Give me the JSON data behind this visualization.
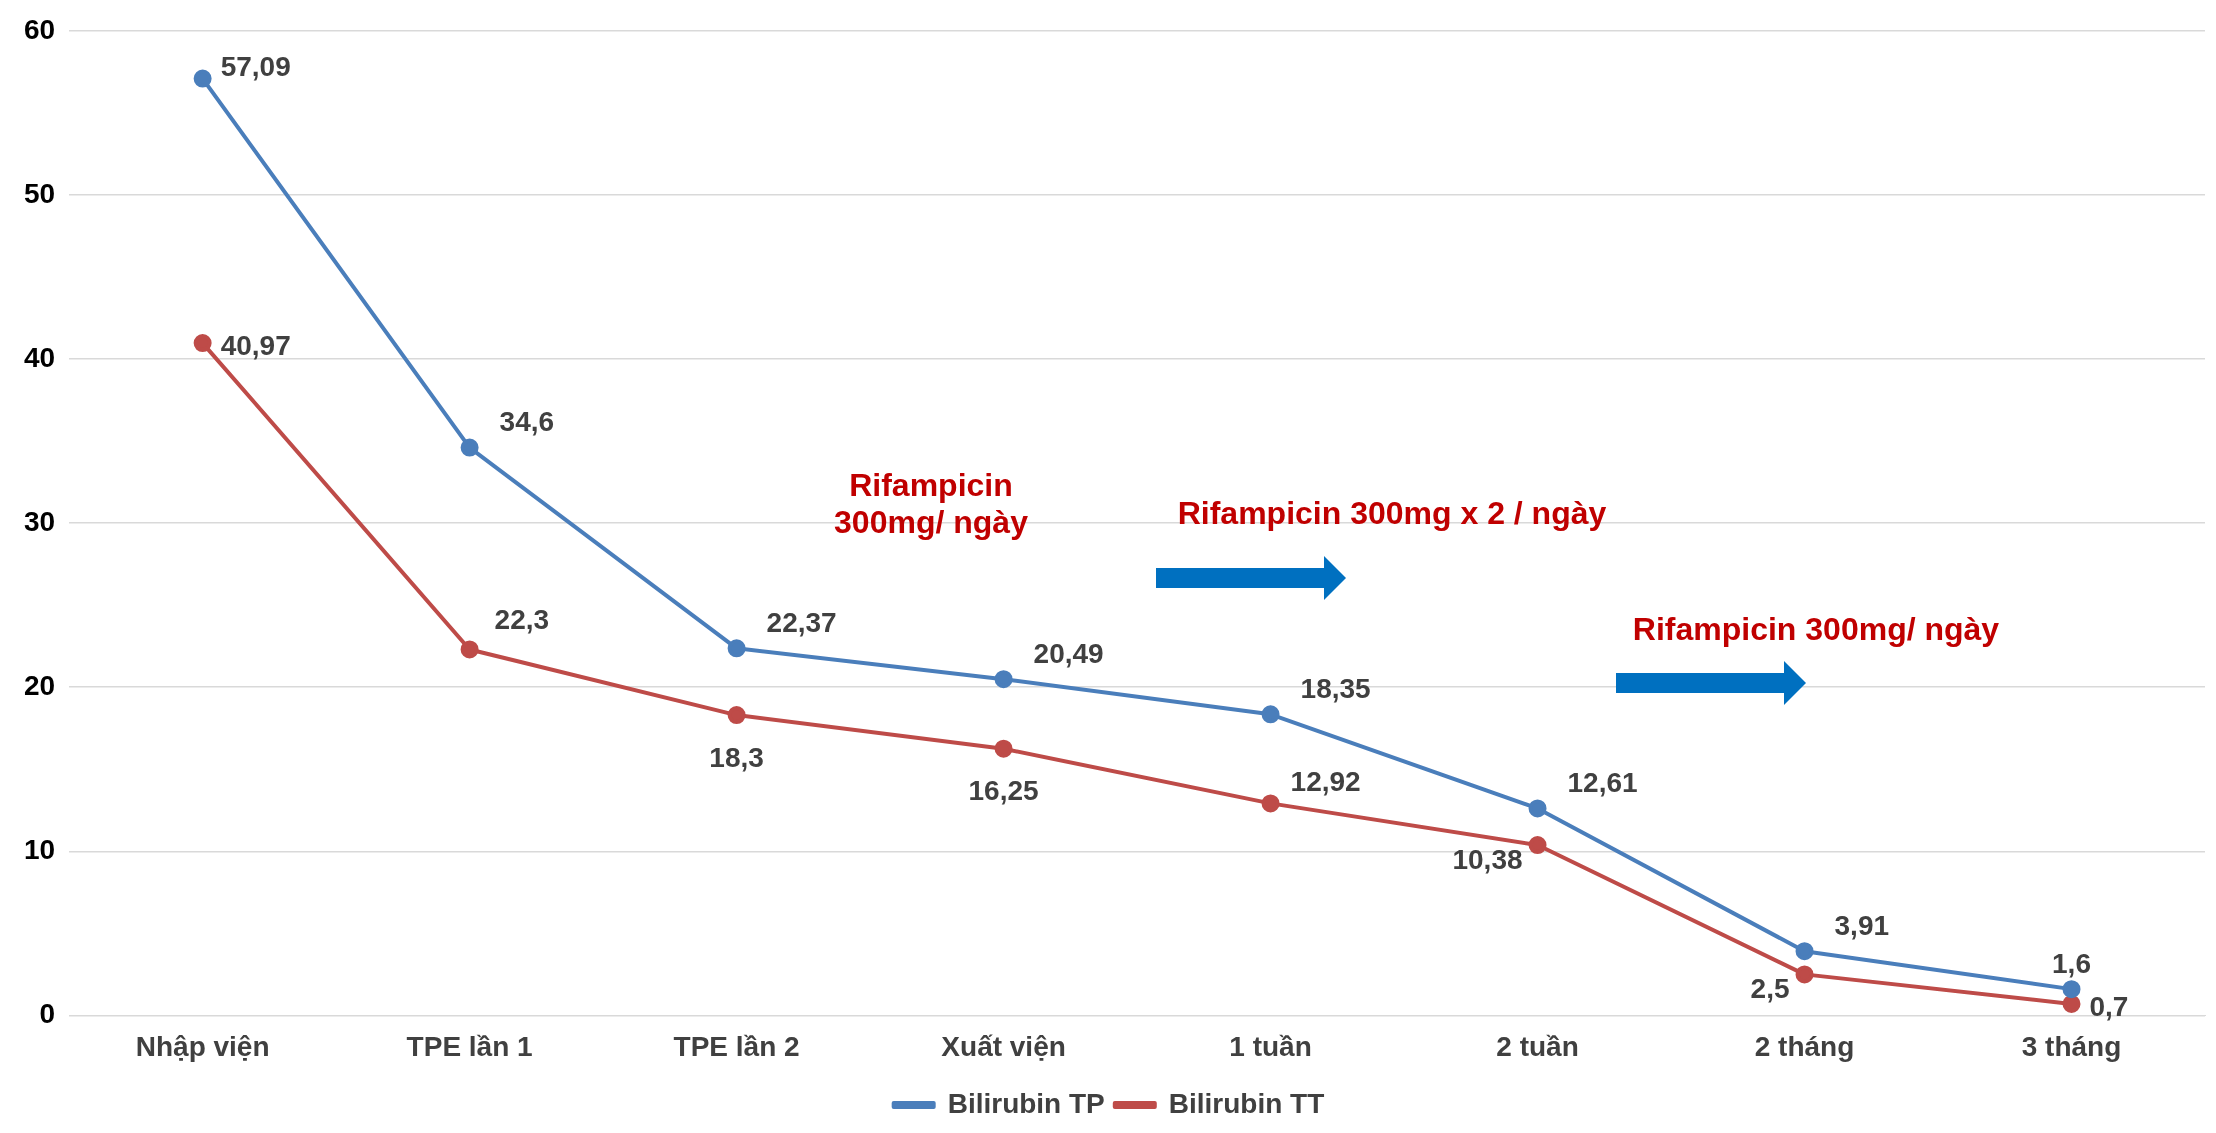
{
  "chart_data": {
    "type": "line",
    "categories": [
      "Nhập viện",
      "TPE lần 1",
      "TPE lần 2",
      "Xuất viện",
      "1 tuần",
      "2 tuần",
      "2 tháng",
      "3 tháng"
    ],
    "series": [
      {
        "name": "Bilirubin TP",
        "color": "#4a7ebb",
        "values": [
          57.09,
          34.6,
          22.37,
          20.49,
          18.35,
          12.61,
          3.91,
          1.6
        ],
        "value_labels": [
          "57,09",
          "34,6",
          "22,37",
          "20,49",
          "18,35",
          "12,61",
          "3,91",
          "1,6"
        ]
      },
      {
        "name": "Bilirubin TT",
        "color": "#be4b48",
        "values": [
          40.97,
          22.3,
          18.3,
          16.25,
          12.92,
          10.38,
          2.5,
          0.7
        ],
        "value_labels": [
          "40,97",
          "22,3",
          "18,3",
          "16,25",
          "12,92",
          "10,38",
          "2,5",
          "0,7"
        ]
      }
    ],
    "ylim": [
      0,
      60
    ],
    "yticks": [
      0,
      10,
      20,
      30,
      40,
      50,
      60
    ],
    "grid": "y",
    "legend": "bottom",
    "marker": "circle",
    "line_style": "solid",
    "annotations": [
      "Rifampicin 300mg/ ngày",
      "Rifampicin 300mg x 2 / ngày",
      "Rifampicin 300mg/ ngày"
    ]
  }
}
